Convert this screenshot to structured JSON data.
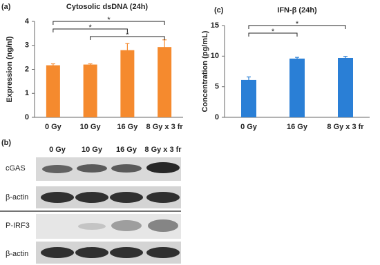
{
  "chart_data": [
    {
      "type": "bar",
      "panel": "(a)",
      "title": "Cytosolic dsDNA  (24h)",
      "y_label": "Expression (ng/nl)",
      "categories": [
        "0 Gy",
        "10 Gy",
        "16 Gy",
        "8 Gy x 3 fr"
      ],
      "values": [
        2.17,
        2.2,
        2.8,
        2.93
      ],
      "errors": [
        0.06,
        0.03,
        0.28,
        0.3
      ],
      "color": "#f58a2e",
      "ylim": [
        0,
        4
      ],
      "yticks": [
        0,
        1,
        2,
        3,
        4
      ],
      "annotations": [
        {
          "from": "0 Gy",
          "to": "8 Gy x 3 fr",
          "text": "*"
        },
        {
          "from": "0 Gy",
          "to": "16 Gy",
          "text": "*"
        },
        {
          "from": "10 Gy",
          "to": "8 Gy x 3 fr",
          "text": "*"
        }
      ]
    },
    {
      "type": "bar",
      "panel": "(c)",
      "title": "IFN-β  (24h)",
      "y_label": "Concentration (pg/mL)",
      "categories": [
        "0 Gy",
        "16 Gy",
        "8 Gy x 3 fr"
      ],
      "values": [
        6.1,
        9.6,
        9.7
      ],
      "errors": [
        0.5,
        0.2,
        0.25
      ],
      "color": "#2a7fd6",
      "ylim": [
        0,
        15
      ],
      "yticks": [
        0,
        5,
        10,
        15
      ],
      "annotations": [
        {
          "from": "0 Gy",
          "to": "8 Gy x 3 fr",
          "text": "*"
        },
        {
          "from": "0 Gy",
          "to": "16 Gy",
          "text": "*"
        }
      ]
    }
  ],
  "blot": {
    "panel": "(b)",
    "columns": [
      "0 Gy",
      "10 Gy",
      "16 Gy",
      "8 Gy x 3 fr"
    ],
    "rows": [
      "cGAS",
      "β-actin",
      "P-IRF3",
      "β-actin"
    ]
  }
}
